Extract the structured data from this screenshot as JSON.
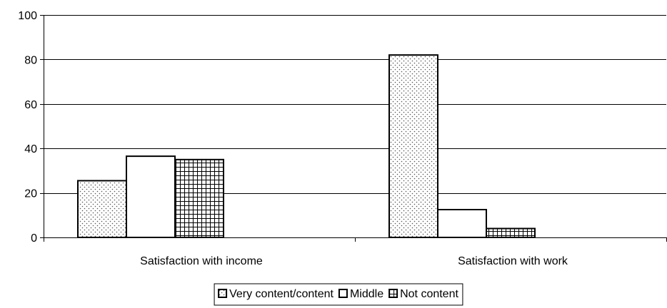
{
  "chart_data": {
    "type": "bar",
    "categories": [
      "Satisfaction with income",
      "Satisfaction with work"
    ],
    "series": [
      {
        "name": "Very content/content",
        "values": [
          25.5,
          82
        ],
        "pattern": "dots",
        "color": "#ffffff"
      },
      {
        "name": "Middle",
        "values": [
          36.5,
          12.5
        ],
        "pattern": "none",
        "color": "#ffffff"
      },
      {
        "name": "Not content",
        "values": [
          35,
          4
        ],
        "pattern": "grid",
        "color": "#ffffff"
      }
    ],
    "ylim": [
      0,
      100
    ],
    "yticks": [
      "0",
      "20",
      "40",
      "60",
      "80",
      "100"
    ],
    "grid": true,
    "legend_position": "bottom",
    "title": "",
    "xlabel": "",
    "ylabel": ""
  }
}
